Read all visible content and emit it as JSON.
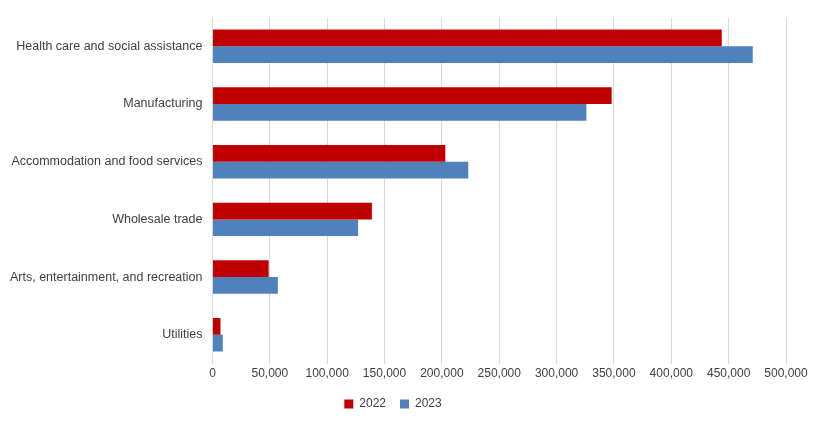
{
  "chart_data": {
    "type": "bar",
    "orientation": "horizontal",
    "categories": [
      "Health care and social assistance",
      "Manufacturing",
      "Accommodation and food services",
      "Wholesale trade",
      "Arts, entertainment, and recreation",
      "Utilities"
    ],
    "series": [
      {
        "name": "2022",
        "color": "#c00000",
        "values": [
          444000,
          348000,
          203000,
          139000,
          49000,
          7000
        ]
      },
      {
        "name": "2023",
        "color": "#4f81bd",
        "values": [
          471000,
          326000,
          223000,
          127000,
          57000,
          9000
        ]
      }
    ],
    "xlim": [
      0,
      500000
    ],
    "xticks": [
      0,
      {
        "value": 50000,
        "label": "50,000"
      },
      {
        "value": 100000,
        "label": "100,000"
      },
      {
        "value": 150000,
        "label": "150,000"
      },
      {
        "value": 200000,
        "label": "200,000"
      },
      {
        "value": 250000,
        "label": "250,000"
      },
      {
        "value": 300000,
        "label": "300,000"
      },
      {
        "value": 350000,
        "label": "350,000"
      },
      {
        "value": 400000,
        "label": "400,000"
      },
      {
        "value": 450000,
        "label": "450,000"
      },
      {
        "value": 500000,
        "label": "500,000"
      }
    ],
    "grid": true,
    "legend": "bottom"
  }
}
